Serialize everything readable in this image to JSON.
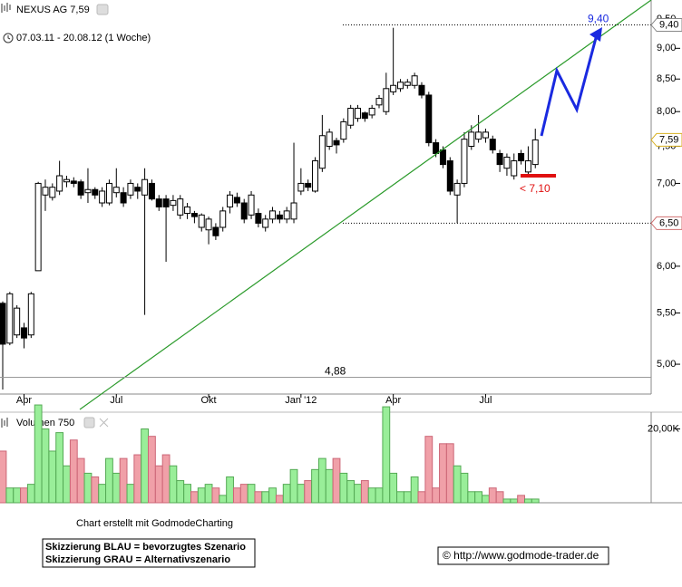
{
  "chart_data": {
    "type": "candlestick",
    "title": "NEXUS AG 7,59",
    "subtitle": "07.03.11 - 20.08.12 (1 Woche)",
    "log_scale": true,
    "grid": false,
    "categories": [
      null,
      null,
      null,
      "Apr",
      null,
      null,
      null,
      null,
      null,
      null,
      null,
      null,
      null,
      null,
      null,
      null,
      "Jul",
      null,
      null,
      null,
      null,
      null,
      null,
      null,
      null,
      null,
      null,
      null,
      null,
      "Okt",
      null,
      null,
      null,
      null,
      null,
      null,
      null,
      null,
      null,
      null,
      null,
      null,
      "Jan '12",
      null,
      null,
      null,
      null,
      null,
      null,
      null,
      null,
      null,
      null,
      null,
      null,
      "Apr",
      null,
      null,
      null,
      null,
      null,
      null,
      null,
      null,
      null,
      null,
      null,
      null,
      "Jul",
      null,
      null,
      null,
      null,
      null,
      null,
      null
    ],
    "open": [
      5.6,
      5.2,
      5.28,
      5.35,
      5.28,
      5.95,
      6.85,
      6.82,
      6.9,
      7.02,
      7.03,
      7.02,
      6.88,
      6.92,
      6.75,
      6.75,
      6.88,
      6.88,
      6.85,
      6.95,
      6.85,
      7.0,
      6.8,
      6.8,
      6.72,
      6.6,
      6.62,
      6.62,
      6.45,
      6.42,
      6.45,
      6.45,
      6.7,
      6.82,
      6.75,
      6.6,
      6.62,
      6.45,
      6.55,
      6.6,
      6.55,
      6.55,
      6.9,
      7.0,
      6.9,
      7.2,
      7.5,
      7.58,
      7.6,
      7.8,
      7.9,
      7.98,
      7.95,
      8.1,
      8.0,
      8.3,
      8.35,
      8.4,
      8.4,
      8.4,
      8.25,
      7.55,
      7.45,
      7.3,
      6.85,
      7.0,
      7.5,
      7.6,
      7.62,
      7.6,
      7.4,
      7.2,
      7.1,
      7.4,
      7.15,
      7.25
    ],
    "high": [
      5.62,
      5.72,
      5.58,
      5.4,
      5.72,
      7.02,
      7.05,
      7.0,
      7.3,
      7.1,
      7.08,
      7.05,
      7.2,
      6.95,
      6.95,
      7.05,
      7.2,
      6.95,
      7.05,
      7.0,
      7.2,
      7.05,
      6.85,
      6.85,
      6.85,
      6.85,
      6.75,
      6.65,
      6.62,
      6.58,
      6.5,
      6.7,
      6.9,
      6.88,
      6.8,
      6.9,
      6.68,
      6.6,
      6.7,
      6.65,
      6.7,
      7.55,
      7.2,
      7.05,
      7.35,
      7.95,
      7.75,
      7.62,
      7.9,
      8.1,
      8.1,
      8.0,
      8.1,
      8.25,
      8.6,
      9.35,
      8.5,
      8.5,
      8.6,
      8.45,
      8.3,
      7.6,
      7.5,
      7.35,
      7.05,
      7.7,
      7.8,
      7.95,
      7.75,
      7.65,
      7.45,
      7.4,
      7.4,
      7.45,
      7.5,
      7.75
    ],
    "low": [
      4.77,
      5.18,
      5.25,
      5.15,
      5.25,
      5.95,
      6.65,
      6.78,
      6.85,
      6.95,
      6.95,
      6.8,
      6.75,
      6.8,
      6.7,
      6.72,
      6.82,
      6.7,
      6.8,
      6.8,
      5.48,
      6.78,
      6.65,
      6.05,
      6.65,
      6.55,
      6.55,
      6.5,
      6.4,
      6.25,
      6.3,
      6.4,
      6.62,
      6.7,
      6.5,
      6.55,
      6.45,
      6.4,
      6.5,
      6.5,
      6.5,
      6.5,
      6.85,
      6.9,
      6.88,
      7.15,
      7.45,
      7.4,
      7.55,
      7.75,
      7.85,
      7.85,
      7.9,
      8.05,
      7.95,
      8.25,
      8.3,
      8.35,
      8.35,
      8.2,
      7.5,
      7.35,
      7.2,
      6.85,
      6.5,
      6.95,
      7.45,
      7.55,
      7.55,
      7.4,
      7.15,
      7.1,
      7.05,
      7.25,
      7.1,
      7.2
    ],
    "close": [
      5.19,
      5.7,
      5.55,
      5.25,
      5.7,
      7.0,
      6.95,
      6.95,
      7.1,
      7.05,
      7.0,
      6.85,
      6.92,
      6.85,
      6.9,
      7.0,
      6.95,
      6.75,
      7.0,
      6.9,
      7.05,
      6.8,
      6.7,
      6.7,
      6.78,
      6.8,
      6.7,
      6.58,
      6.6,
      6.55,
      6.35,
      6.65,
      6.85,
      6.75,
      6.55,
      6.85,
      6.5,
      6.55,
      6.65,
      6.55,
      6.65,
      6.75,
      7.0,
      6.95,
      7.3,
      7.65,
      7.7,
      7.52,
      7.85,
      8.05,
      8.05,
      7.9,
      8.05,
      8.2,
      8.35,
      8.4,
      8.45,
      8.45,
      8.55,
      8.25,
      7.55,
      7.4,
      7.25,
      6.9,
      7.0,
      7.6,
      7.7,
      7.7,
      7.7,
      7.45,
      7.25,
      7.35,
      7.3,
      7.3,
      7.3,
      7.59
    ],
    "up_color": "#ffffff",
    "down_color": "#000000",
    "ylim": [
      4.73,
      9.52
    ],
    "yticks": [
      {
        "value": 9.5,
        "label": "9,50"
      },
      {
        "value": 9,
        "label": "9,00"
      },
      {
        "value": 8.5,
        "label": "8,50"
      },
      {
        "value": 8,
        "label": "8,00"
      },
      {
        "value": 7.5,
        "label": "7,50"
      },
      {
        "value": 7,
        "label": "7,00"
      },
      {
        "value": 6.5,
        "label": "6,50"
      },
      {
        "value": 6,
        "label": "6,00"
      },
      {
        "value": 5.5,
        "label": "5,50"
      },
      {
        "value": 5,
        "label": "5,00"
      }
    ],
    "levels": {
      "resistance": {
        "value": 9.4,
        "label": "9,40"
      },
      "current": {
        "value": 7.59,
        "label": "7,59"
      },
      "support": {
        "value": 6.5,
        "label": "6,50"
      },
      "low": {
        "value": 4.88,
        "label": "4,88"
      },
      "target": {
        "value": 9.4,
        "label": "9,40"
      },
      "stop": {
        "value": 7.1,
        "label": "< 7,10"
      }
    },
    "volume": {
      "label": "Volumen 750",
      "values": [
        14000,
        4000,
        4000,
        4000,
        5000,
        26500,
        20000,
        14000,
        19000,
        10000,
        17000,
        12000,
        8000,
        7000,
        5000,
        12000,
        8000,
        12000,
        5000,
        13000,
        20000,
        18000,
        10000,
        13000,
        10000,
        6000,
        5000,
        3000,
        4000,
        5000,
        4000,
        2000,
        7000,
        4000,
        5000,
        5000,
        3000,
        3000,
        4000,
        2000,
        5000,
        9000,
        5000,
        6000,
        9000,
        12000,
        9000,
        12000,
        8000,
        6000,
        5000,
        6000,
        4000,
        4000,
        26000,
        8000,
        3000,
        3000,
        7000,
        3000,
        18000,
        4000,
        16000,
        16000,
        10000,
        8000,
        3000,
        3000,
        2000,
        4000,
        3000,
        1000,
        1000,
        2000,
        1000,
        1000
      ],
      "up_color": "#99ee99",
      "down_color": "#f0a0a8",
      "ylim": [
        0,
        27000
      ],
      "yticks": [
        {
          "value": 20000,
          "label": "20,00K"
        }
      ]
    },
    "credit": "Chart erstellt mit GodmodeCharting",
    "notes": [
      "Skizzierung BLAU = bevorzugtes Szenario",
      "Skizzierung GRAU = Alternativszenario"
    ],
    "copyright": "© http://www.godmode-trader.de"
  }
}
